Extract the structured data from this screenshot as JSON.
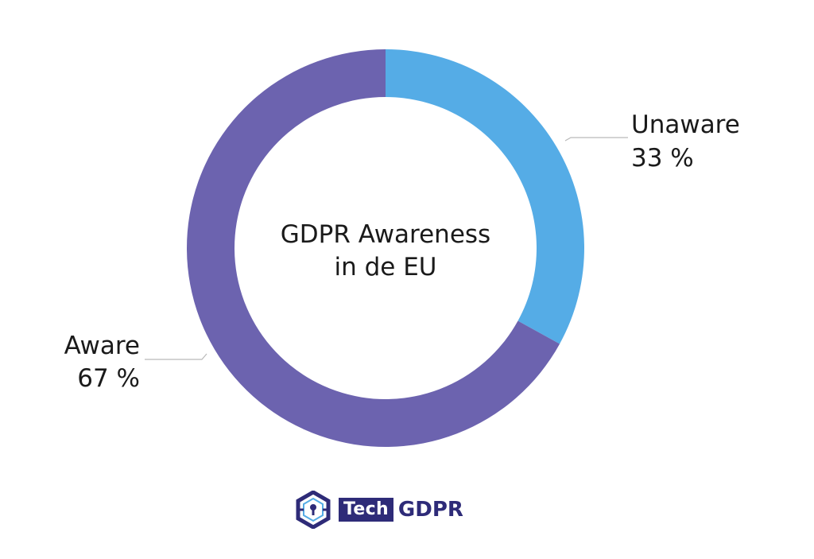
{
  "chart_data": {
    "type": "pie",
    "donut": true,
    "center_label": [
      "GDPR Awareness",
      "in de EU"
    ],
    "slices": [
      {
        "name": "Unaware",
        "value": 33,
        "value_label": "33 %",
        "color": "#55ACE6"
      },
      {
        "name": "Aware",
        "value": 67,
        "value_label": "67 %",
        "color": "#6C63AF"
      }
    ]
  },
  "logo": {
    "tech": "Tech",
    "gdpr": "GDPR",
    "color": "#2E2B78"
  }
}
